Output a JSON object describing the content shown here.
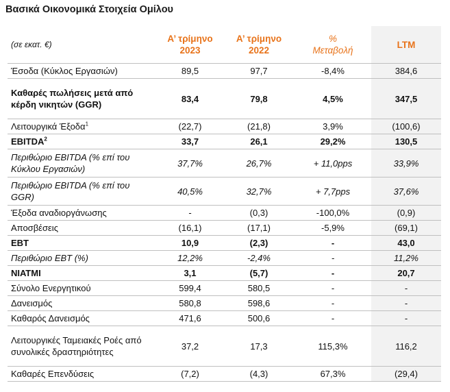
{
  "title": "Βασικά Οικονομικά Στοιχεία Ομίλου",
  "header": {
    "unit": "(σε εκατ. €)",
    "col1": [
      "Α’ τρίμηνο",
      "2023"
    ],
    "col2": [
      "Α’ τρίμηνο",
      "2022"
    ],
    "col3": [
      "%",
      "Μεταβολή"
    ],
    "col4": "LTM"
  },
  "colors": {
    "accent": "#e8731a",
    "ltm_bg": "#f2f2f2",
    "rule": "#bfbfbf"
  },
  "rows": [
    {
      "label": "Έσοδα (Κύκλος Εργασιών)",
      "sup": "",
      "values": [
        "89,5",
        "97,7",
        "-8,4%",
        "384,6"
      ],
      "style": "normal",
      "h": "h1"
    },
    {
      "label": "Καθαρές πωλήσεις μετά από κέρδη νικητών (GGR)",
      "sup": "",
      "values": [
        "83,4",
        "79,8",
        "4,5%",
        "347,5"
      ],
      "style": "bold",
      "h": "h3"
    },
    {
      "label": "Λειτουργικά Έξοδα",
      "sup": "1",
      "values": [
        "(22,7)",
        "(21,8)",
        "3,9%",
        "(100,6)"
      ],
      "style": "normal",
      "h": "h1"
    },
    {
      "label": "EBITDA",
      "sup": "2",
      "values": [
        "33,7",
        "26,1",
        "29,2%",
        "130,5"
      ],
      "style": "bold",
      "h": "h1"
    },
    {
      "label": "Περιθώριο EBITDA (% επί του Κύκλου Εργασιών)",
      "sup": "",
      "values": [
        "37,7%",
        "26,7%",
        "+ 11,0pps",
        "33,9%"
      ],
      "style": "ital",
      "h": "h2"
    },
    {
      "label": "Περιθώριο EBITDA (% επί του GGR)",
      "sup": "",
      "values": [
        "40,5%",
        "32,7%",
        "+ 7,7pps",
        "37,6%"
      ],
      "style": "ital",
      "h": "h2"
    },
    {
      "label": "Έξοδα αναδιοργάνωσης",
      "sup": "",
      "values": [
        "-",
        "(0,3)",
        "-100,0%",
        "(0,9)"
      ],
      "style": "normal",
      "h": "h1"
    },
    {
      "label": "Αποσβέσεις",
      "sup": "",
      "values": [
        "(16,1)",
        "(17,1)",
        "-5,9%",
        "(69,1)"
      ],
      "style": "normal",
      "h": "h1"
    },
    {
      "label": "EBT",
      "sup": "",
      "values": [
        "10,9",
        "(2,3)",
        "-",
        "43,0"
      ],
      "style": "bold",
      "h": "h1"
    },
    {
      "label": "Περιθώριο EBT (%)",
      "sup": "",
      "values": [
        "12,2%",
        "-2,4%",
        "-",
        "11,2%"
      ],
      "style": "ital",
      "h": "h1"
    },
    {
      "label": "ΝΙΑΤΜΙ",
      "sup": "",
      "values": [
        "3,1",
        "(5,7)",
        "-",
        "20,7"
      ],
      "style": "bold",
      "h": "h1"
    },
    {
      "label": "Σύνολο Ενεργητικού",
      "sup": "",
      "values": [
        "599,4",
        "580,5",
        "-",
        "-"
      ],
      "style": "normal",
      "h": "h1"
    },
    {
      "label": "Δανεισμός",
      "sup": "",
      "values": [
        "580,8",
        "598,6",
        "-",
        "-"
      ],
      "style": "normal",
      "h": "h1"
    },
    {
      "label": "Καθαρός Δανεισμός",
      "sup": "",
      "values": [
        "471,6",
        "500,6",
        "-",
        "-"
      ],
      "style": "normal",
      "h": "h1"
    },
    {
      "label": "Λειτουργικές Ταμειακές Ροές από συνολικές δραστηριότητες",
      "sup": "",
      "values": [
        "37,2",
        "17,3",
        "115,3%",
        "116,2"
      ],
      "style": "normal",
      "h": "h3"
    },
    {
      "label": "Καθαρές Επενδύσεις",
      "sup": "",
      "values": [
        "(7,2)",
        "(4,3)",
        "67,3%",
        "(29,4)"
      ],
      "style": "normal",
      "h": "h1"
    }
  ]
}
